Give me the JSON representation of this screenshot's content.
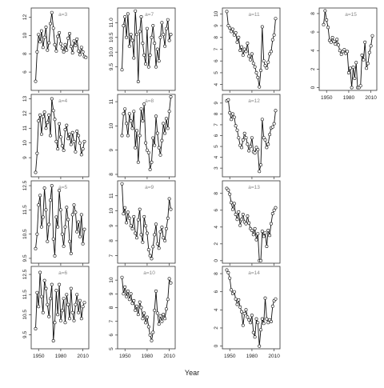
{
  "chart_data": {
    "type": "scatter",
    "xlabel": "Year",
    "x_ticks": [
      1950,
      1980,
      2010
    ],
    "x_tick_labels": [
      "1950",
      "1980",
      "2010"
    ],
    "xlim": [
      1940,
      2018
    ],
    "panels": [
      {
        "label": "a=3",
        "col": 0,
        "row": 0,
        "ylim": [
          4,
          13
        ],
        "yticks": [
          6,
          8,
          10,
          12
        ],
        "show_xticks": false,
        "x": [
          1946,
          1948,
          1950,
          1952,
          1954,
          1956,
          1958,
          1960,
          1962,
          1964,
          1966,
          1968,
          1970,
          1972,
          1974,
          1976,
          1978,
          1980,
          1982,
          1984,
          1986,
          1988,
          1990,
          1992,
          1994,
          1996,
          1998,
          2000,
          2002,
          2004,
          2006,
          2008,
          2010,
          2012,
          2014
        ],
        "y": [
          5.0,
          8.2,
          10.1,
          9.3,
          10.5,
          8.7,
          9.8,
          10.9,
          8.4,
          9.2,
          11.3,
          12.5,
          10.8,
          9.0,
          8.3,
          9.9,
          10.3,
          9.1,
          8.6,
          8.2,
          9.0,
          8.4,
          9.7,
          10.2,
          8.8,
          8.1,
          9.4,
          8.9,
          9.6,
          8.3,
          7.9,
          8.7,
          8.2,
          7.7,
          7.6
        ]
      },
      {
        "label": "a=4",
        "col": 0,
        "row": 1,
        "ylim": [
          7.7,
          13.3
        ],
        "yticks": [
          9,
          10,
          11,
          12,
          13
        ],
        "show_xticks": false,
        "x": [
          1946,
          1948,
          1950,
          1952,
          1954,
          1956,
          1958,
          1960,
          1962,
          1964,
          1966,
          1968,
          1970,
          1972,
          1974,
          1976,
          1978,
          1980,
          1982,
          1984,
          1986,
          1988,
          1990,
          1992,
          1994,
          1996,
          1998,
          2000,
          2002,
          2004,
          2006,
          2008,
          2010,
          2012
        ],
        "y": [
          8.0,
          9.3,
          11.5,
          11.9,
          10.6,
          11.8,
          12.1,
          11.0,
          11.4,
          11.9,
          10.5,
          13.0,
          12.2,
          11.6,
          10.1,
          9.6,
          11.3,
          10.4,
          9.8,
          9.5,
          10.9,
          11.2,
          10.3,
          10.6,
          9.9,
          10.7,
          10.1,
          9.4,
          10.8,
          10.5,
          10.0,
          9.2,
          9.6,
          10.1
        ]
      },
      {
        "label": "a=5",
        "col": 0,
        "row": 2,
        "ylim": [
          9.3,
          12.7
        ],
        "yticks": [
          9.5,
          10.5,
          11.5,
          12.5
        ],
        "show_xticks": false,
        "x": [
          1946,
          1948,
          1950,
          1952,
          1954,
          1956,
          1958,
          1960,
          1962,
          1964,
          1966,
          1968,
          1970,
          1972,
          1974,
          1976,
          1978,
          1980,
          1982,
          1984,
          1986,
          1988,
          1990,
          1992,
          1994,
          1996,
          1998,
          2000,
          2002,
          2004,
          2006,
          2008,
          2010,
          2012
        ],
        "y": [
          9.9,
          10.5,
          11.7,
          12.1,
          10.8,
          11.2,
          12.4,
          11.5,
          10.2,
          10.9,
          11.9,
          12.5,
          10.3,
          9.6,
          11.2,
          10.8,
          12.3,
          11.5,
          10.5,
          10.0,
          10.8,
          11.6,
          11.1,
          10.2,
          9.7,
          11.3,
          11.7,
          11.4,
          10.6,
          11.0,
          10.4,
          11.3,
          10.1,
          10.7
        ]
      },
      {
        "label": "a=6",
        "col": 0,
        "row": 3,
        "ylim": [
          8.8,
          12.9
        ],
        "yticks": [
          9.5,
          10.5,
          11.5,
          12.5
        ],
        "show_xticks": true,
        "x": [
          1946,
          1948,
          1950,
          1952,
          1954,
          1956,
          1958,
          1960,
          1962,
          1964,
          1966,
          1968,
          1970,
          1972,
          1974,
          1976,
          1978,
          1980,
          1982,
          1984,
          1986,
          1988,
          1990,
          1992,
          1994,
          1996,
          1998,
          2000,
          2002,
          2004,
          2006,
          2008,
          2010,
          2012
        ],
        "y": [
          9.8,
          11.6,
          10.9,
          12.6,
          11.4,
          10.6,
          12.2,
          11.8,
          11.0,
          10.4,
          11.3,
          12.0,
          9.2,
          10.1,
          11.7,
          10.5,
          12.0,
          10.2,
          10.7,
          11.3,
          10.1,
          11.5,
          11.0,
          10.3,
          11.8,
          10.6,
          10.2,
          11.0,
          11.5,
          10.6,
          11.2,
          10.3,
          10.9,
          11.1
        ]
      },
      {
        "label": "a=7",
        "col": 1,
        "row": 0,
        "ylim": [
          8.7,
          11.5
        ],
        "yticks": [
          9.5,
          10.0,
          10.5,
          11.0
        ],
        "show_xticks": false,
        "x": [
          1946,
          1948,
          1950,
          1952,
          1954,
          1956,
          1958,
          1960,
          1962,
          1964,
          1966,
          1968,
          1970,
          1972,
          1974,
          1976,
          1978,
          1980,
          1982,
          1984,
          1986,
          1988,
          1990,
          1992,
          1994,
          1996,
          1998,
          2000,
          2002,
          2004,
          2006,
          2008,
          2010,
          2012
        ],
        "y": [
          9.4,
          10.9,
          11.2,
          10.5,
          11.3,
          10.2,
          10.6,
          10.4,
          9.8,
          11.4,
          10.6,
          9.0,
          10.7,
          11.2,
          10.3,
          9.9,
          9.6,
          10.8,
          9.5,
          9.9,
          10.5,
          10.9,
          10.3,
          9.5,
          10.1,
          9.7,
          10.5,
          11.0,
          10.6,
          10.2,
          10.8,
          11.1,
          10.4,
          10.6
        ]
      },
      {
        "label": "a=8",
        "col": 1,
        "row": 1,
        "ylim": [
          7.9,
          11.3
        ],
        "yticks": [
          8.0,
          9.0,
          10.0,
          11.0
        ],
        "show_xticks": false,
        "x": [
          1946,
          1948,
          1950,
          1952,
          1954,
          1956,
          1958,
          1960,
          1962,
          1964,
          1966,
          1968,
          1970,
          1972,
          1974,
          1976,
          1978,
          1980,
          1982,
          1984,
          1986,
          1988,
          1990,
          1992,
          1994,
          1996,
          1998,
          2000,
          2002,
          2004,
          2006,
          2008,
          2010,
          2012
        ],
        "y": [
          9.6,
          10.5,
          10.7,
          10.1,
          9.6,
          10.5,
          10.2,
          9.9,
          10.6,
          9.1,
          9.8,
          8.5,
          9.6,
          10.7,
          10.2,
          10.9,
          9.3,
          9.0,
          8.9,
          8.2,
          8.5,
          9.5,
          9.2,
          10.4,
          9.7,
          9.1,
          8.8,
          9.4,
          10.1,
          9.7,
          10.3,
          9.9,
          10.6,
          11.2
        ]
      },
      {
        "label": "a=9",
        "col": 1,
        "row": 2,
        "ylim": [
          6.5,
          12.0
        ],
        "yticks": [
          7,
          8,
          9,
          10,
          11
        ],
        "show_xticks": false,
        "x": [
          1946,
          1948,
          1950,
          1952,
          1954,
          1956,
          1958,
          1960,
          1962,
          1964,
          1966,
          1968,
          1970,
          1972,
          1974,
          1976,
          1978,
          1980,
          1982,
          1984,
          1986,
          1988,
          1990,
          1992,
          1994,
          1996,
          1998,
          2000,
          2002,
          2004,
          2006,
          2008,
          2010,
          2012
        ],
        "y": [
          11.8,
          9.8,
          10.2,
          9.2,
          9.9,
          9.5,
          9.0,
          8.8,
          9.6,
          8.5,
          8.2,
          9.4,
          10.1,
          8.4,
          7.9,
          9.6,
          9.0,
          8.5,
          7.4,
          7.0,
          6.8,
          7.6,
          8.4,
          9.1,
          7.8,
          7.5,
          8.6,
          8.9,
          8.2,
          8.0,
          8.8,
          9.5,
          10.8,
          10.1
        ]
      },
      {
        "label": "a=10",
        "col": 1,
        "row": 3,
        "ylim": [
          5.0,
          11.0
        ],
        "yticks": [
          5,
          6,
          7,
          8,
          9,
          10
        ],
        "show_xticks": true,
        "x": [
          1946,
          1948,
          1950,
          1952,
          1954,
          1956,
          1958,
          1960,
          1962,
          1964,
          1966,
          1968,
          1970,
          1972,
          1974,
          1976,
          1978,
          1980,
          1982,
          1984,
          1986,
          1988,
          1990,
          1992,
          1994,
          1996,
          1998,
          2000,
          2002,
          2004,
          2006,
          2008,
          2010,
          2012
        ],
        "y": [
          10.2,
          9.0,
          9.5,
          8.8,
          9.2,
          8.6,
          9.0,
          8.3,
          8.5,
          7.8,
          8.1,
          7.5,
          8.4,
          8.0,
          7.2,
          7.6,
          6.9,
          7.3,
          6.6,
          6.0,
          5.6,
          6.2,
          7.8,
          9.2,
          7.6,
          6.8,
          7.4,
          7.0,
          7.5,
          7.2,
          7.9,
          8.6,
          10.1,
          9.8
        ]
      },
      {
        "label": "a=11",
        "col": 2,
        "row": 0,
        "ylim": [
          3.5,
          10.5
        ],
        "yticks": [
          4,
          5,
          6,
          7,
          8,
          9,
          10
        ],
        "show_xticks": false,
        "x": [
          1946,
          1948,
          1950,
          1952,
          1954,
          1956,
          1958,
          1960,
          1962,
          1964,
          1966,
          1968,
          1970,
          1972,
          1974,
          1976,
          1978,
          1980,
          1982,
          1984,
          1986,
          1988,
          1990,
          1992,
          1994,
          1996,
          1998,
          2000,
          2002,
          2004,
          2006,
          2008,
          2010,
          2012
        ],
        "y": [
          10.2,
          9.0,
          8.8,
          8.5,
          8.7,
          8.2,
          8.4,
          7.6,
          8.0,
          6.9,
          7.2,
          6.5,
          7.0,
          6.8,
          7.5,
          6.4,
          6.1,
          6.6,
          5.8,
          5.5,
          5.0,
          4.6,
          3.8,
          5.2,
          8.9,
          6.0,
          5.6,
          5.4,
          5.9,
          6.6,
          6.8,
          7.8,
          8.2,
          9.6
        ]
      },
      {
        "label": "a=12",
        "col": 2,
        "row": 1,
        "ylim": [
          2.2,
          9.8
        ],
        "yticks": [
          3,
          4,
          5,
          6,
          7,
          8,
          9
        ],
        "show_xticks": false,
        "x": [
          1946,
          1948,
          1950,
          1952,
          1954,
          1956,
          1958,
          1960,
          1962,
          1964,
          1966,
          1968,
          1970,
          1972,
          1974,
          1976,
          1978,
          1980,
          1982,
          1984,
          1986,
          1988,
          1990,
          1992,
          1994,
          1996,
          1998,
          2000,
          2002,
          2004,
          2006,
          2008,
          2010,
          2012
        ],
        "y": [
          9.2,
          9.3,
          8.1,
          7.5,
          8.0,
          7.7,
          6.9,
          6.5,
          5.8,
          5.1,
          4.9,
          5.6,
          6.2,
          5.8,
          5.2,
          4.6,
          5.0,
          5.8,
          4.5,
          4.4,
          4.9,
          4.7,
          2.7,
          3.3,
          7.5,
          5.8,
          5.6,
          4.9,
          5.2,
          6.1,
          6.7,
          6.8,
          7.1,
          8.3
        ]
      },
      {
        "label": "a=13",
        "col": 2,
        "row": 2,
        "ylim": [
          -0.3,
          9.5
        ],
        "yticks": [
          0,
          2,
          4,
          6,
          8
        ],
        "show_xticks": false,
        "x": [
          1946,
          1948,
          1950,
          1952,
          1954,
          1956,
          1958,
          1960,
          1962,
          1964,
          1966,
          1968,
          1970,
          1972,
          1974,
          1976,
          1978,
          1980,
          1982,
          1984,
          1986,
          1988,
          1990,
          1992,
          1994,
          1996,
          1998,
          2000,
          2002,
          2004,
          2006,
          2008,
          2010,
          2012
        ],
        "y": [
          8.6,
          8.4,
          7.9,
          6.9,
          6.1,
          6.8,
          5.5,
          4.9,
          5.8,
          4.2,
          4.9,
          5.5,
          4.6,
          4.4,
          5.3,
          4.5,
          3.8,
          3.6,
          3.1,
          3.8,
          2.5,
          3.2,
          0.0,
          0.0,
          3.5,
          2.9,
          3.3,
          1.7,
          3.6,
          3.0,
          4.4,
          5.6,
          6.0,
          6.3
        ]
      },
      {
        "label": "a=14",
        "col": 2,
        "row": 3,
        "ylim": [
          -0.3,
          8.8
        ],
        "yticks": [
          0,
          2,
          4,
          6,
          8
        ],
        "show_xticks": true,
        "x": [
          1946,
          1948,
          1950,
          1952,
          1954,
          1956,
          1958,
          1960,
          1962,
          1964,
          1966,
          1968,
          1970,
          1972,
          1974,
          1976,
          1978,
          1980,
          1982,
          1984,
          1986,
          1988,
          1990,
          1992,
          1994,
          1996,
          1998,
          2000,
          2002,
          2004,
          2006,
          2008,
          2010,
          2012
        ],
        "y": [
          8.4,
          8.1,
          7.5,
          6.2,
          5.8,
          6.0,
          5.2,
          4.6,
          5.1,
          4.3,
          3.8,
          2.3,
          3.6,
          4.0,
          3.2,
          2.9,
          2.6,
          3.4,
          1.5,
          1.0,
          3.0,
          2.6,
          0.0,
          1.8,
          3.0,
          2.5,
          5.3,
          3.0,
          2.6,
          2.9,
          2.7,
          4.4,
          5.0,
          5.2
        ]
      },
      {
        "label": "a=15",
        "col": 3,
        "row": 0,
        "ylim": [
          -0.3,
          8.6
        ],
        "yticks": [
          0,
          2,
          4,
          6,
          8
        ],
        "show_xticks": true,
        "x": [
          1946,
          1948,
          1950,
          1952,
          1954,
          1956,
          1958,
          1960,
          1962,
          1964,
          1966,
          1968,
          1970,
          1972,
          1974,
          1976,
          1978,
          1980,
          1982,
          1984,
          1986,
          1988,
          1990,
          1992,
          1994,
          1996,
          1998,
          2000,
          2002,
          2004,
          2006,
          2008,
          2010,
          2012
        ],
        "y": [
          6.8,
          8.3,
          7.3,
          6.5,
          5.1,
          4.9,
          5.4,
          5.0,
          4.7,
          5.2,
          4.6,
          4.0,
          3.6,
          3.9,
          4.1,
          3.7,
          3.9,
          1.6,
          2.1,
          0.0,
          2.2,
          1.0,
          2.7,
          0.0,
          0.0,
          0.2,
          3.5,
          3.0,
          4.9,
          2.1,
          2.6,
          3.8,
          4.5,
          5.6
        ]
      }
    ]
  }
}
